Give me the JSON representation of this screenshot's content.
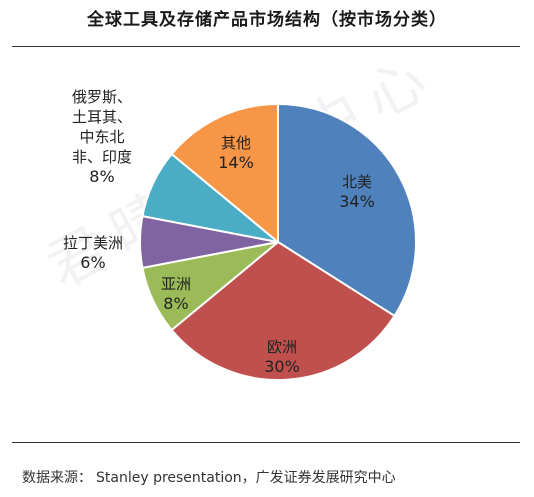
{
  "title": "全球工具及存储产品市场结构（按市场分类）",
  "source": {
    "label": "数据来源：",
    "text": "Stanley presentation，广发证券发展研究中心"
  },
  "watermark": "君晴研究中心",
  "chart_data": {
    "type": "pie",
    "title": "全球工具及存储产品市场结构（按市场分类）",
    "slices": [
      {
        "label": "北美",
        "value": 34,
        "display": "34%",
        "color": "#4f81bd"
      },
      {
        "label": "欧洲",
        "value": 30,
        "display": "30%",
        "color": "#c0504d"
      },
      {
        "label": "亚洲",
        "value": 8,
        "display": "8%",
        "color": "#9bbb59"
      },
      {
        "label": "拉丁美洲",
        "value": 6,
        "display": "6%",
        "color": "#8064a2"
      },
      {
        "label": "俄罗斯、土耳其、中东北非、印度",
        "label_lines": [
          "俄罗斯、",
          "土耳其、",
          "中东北",
          "非、印度"
        ],
        "value": 8,
        "display": "8%",
        "color": "#4bacc6"
      },
      {
        "label": "其他",
        "value": 14,
        "display": "14%",
        "color": "#f79646"
      }
    ]
  }
}
